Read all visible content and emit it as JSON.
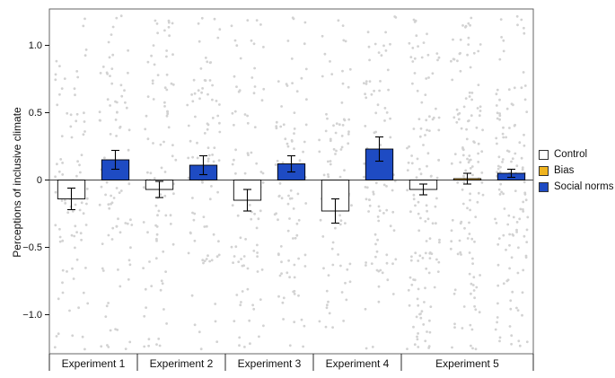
{
  "chart_data": {
    "type": "bar",
    "title": "",
    "ylabel": "Perceptions of inclusive climate",
    "xlabel": "",
    "ylim": [
      -1.29,
      1.27
    ],
    "yticks": [
      1.0,
      0.5,
      0,
      -0.5,
      -1.0
    ],
    "ytick_labels": [
      "1.0",
      "0.5",
      "0",
      "−0.5",
      "−1.0"
    ],
    "grid": false,
    "legend_position": "right",
    "categories": [
      "Experiment 1",
      "Experiment 2",
      "Experiment 3",
      "Experiment 4",
      "Experiment 5"
    ],
    "columns_per_category": [
      2,
      2,
      2,
      2,
      3
    ],
    "series": [
      {
        "name": "Control",
        "color": "#ffffff",
        "values": [
          -0.14,
          -0.07,
          -0.15,
          -0.23,
          -0.07
        ],
        "errors": [
          0.08,
          0.06,
          0.08,
          0.09,
          0.04
        ]
      },
      {
        "name": "Bias",
        "color": "#f0b41f",
        "values": [
          null,
          null,
          null,
          null,
          0.01
        ],
        "errors": [
          null,
          null,
          null,
          null,
          0.04
        ]
      },
      {
        "name": "Social norms",
        "color": "#1e4bc3",
        "values": [
          0.15,
          0.11,
          0.12,
          0.23,
          0.05
        ],
        "errors": [
          0.07,
          0.07,
          0.06,
          0.09,
          0.03
        ]
      }
    ],
    "scatter": {
      "color": "#d2d2d2",
      "radius": 1.4,
      "points_per_column": [
        90,
        90,
        90,
        90,
        130
      ],
      "mean": 0,
      "sd": 0.62,
      "clip": [
        -1.26,
        1.22
      ]
    }
  }
}
